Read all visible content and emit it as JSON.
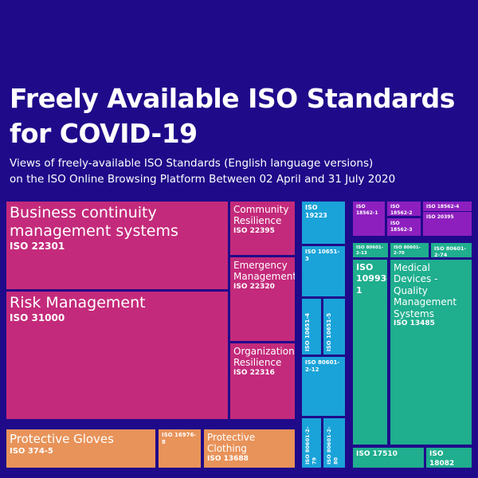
{
  "header": {
    "title_lines": [
      "Freely Available ISO Standards",
      "for COVID-19"
    ],
    "subtitle_lines": [
      "Views of freely-available ISO Standards (English language versions)",
      "on the ISO Online Browsing Platform Between 02 April and 31 July 2020"
    ]
  },
  "tiles": [
    {
      "name": "Business continuity management systems",
      "code": "ISO 22301"
    },
    {
      "name": "Risk Management",
      "code": "ISO 31000"
    },
    {
      "name": "Community Resilience",
      "code": "ISO 22395"
    },
    {
      "name": "Emergency Management",
      "code": "ISO 22320"
    },
    {
      "name": "Organizational Resilience",
      "code": "ISO 22316"
    },
    {
      "name": "Protective Gloves",
      "code": "ISO 374-5"
    },
    {
      "code": "ISO 16976-8"
    },
    {
      "name": "Protective Clothing",
      "code": "ISO 13688"
    },
    {
      "code": "ISO 19223"
    },
    {
      "code": "ISO 10651-3"
    },
    {
      "code": "ISO 10651-4"
    },
    {
      "code": "ISO 10651-5"
    },
    {
      "code": "ISO 80601-2-12"
    },
    {
      "code": "ISO 80601-2-79"
    },
    {
      "code": "ISO 80601-2-80"
    },
    {
      "code": "ISO 18562-1"
    },
    {
      "code": "ISO 18562-2"
    },
    {
      "code": "ISO 18562-3"
    },
    {
      "code": "ISO 18562-4"
    },
    {
      "code": "ISO 20395"
    },
    {
      "code": "ISO 80601-2-13"
    },
    {
      "code": "ISO 80601-2-70"
    },
    {
      "code": "ISO 80601-2-74"
    },
    {
      "code": "ISO 10993-1"
    },
    {
      "name": "Medical Devices - Quality Management Systems",
      "code": "ISO 13485"
    },
    {
      "code": "ISO 17510"
    },
    {
      "code": "ISO 18082"
    }
  ]
}
